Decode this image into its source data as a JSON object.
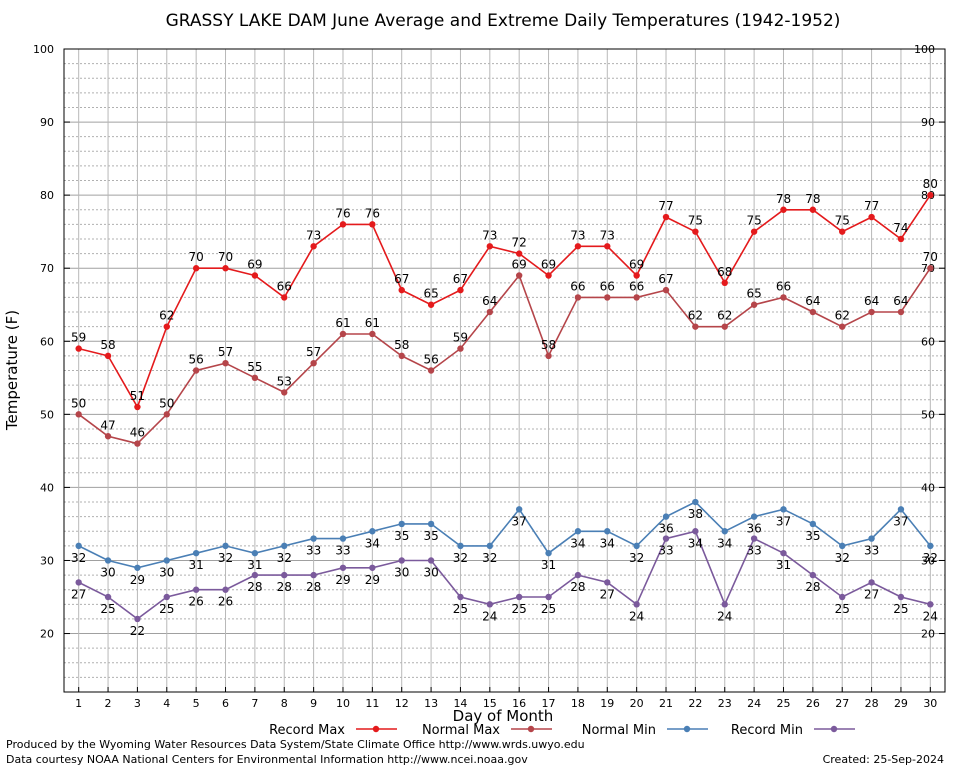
{
  "chart_data": {
    "type": "line",
    "title": "GRASSY LAKE DAM June Average and Extreme Daily Temperatures (1942-1952)",
    "xlabel": "Day of Month",
    "ylabel": "Temperature (F)",
    "x": [
      1,
      2,
      3,
      4,
      5,
      6,
      7,
      8,
      9,
      10,
      11,
      12,
      13,
      14,
      15,
      16,
      17,
      18,
      19,
      20,
      21,
      22,
      23,
      24,
      25,
      26,
      27,
      28,
      29,
      30
    ],
    "xlim": [
      0.5,
      30.5
    ],
    "ylim": [
      12,
      100
    ],
    "yticks": [
      20,
      30,
      40,
      50,
      60,
      70,
      80,
      90,
      100
    ],
    "grid": true,
    "legend_position": "bottom",
    "series": [
      {
        "name": "Record Max",
        "color": "#e41a1c",
        "values": [
          59,
          58,
          51,
          62,
          70,
          70,
          69,
          66,
          73,
          76,
          76,
          67,
          65,
          67,
          73,
          72,
          69,
          73,
          73,
          69,
          77,
          75,
          68,
          75,
          78,
          78,
          75,
          77,
          74,
          80
        ]
      },
      {
        "name": "Normal Max",
        "color": "#b5454a",
        "values": [
          50,
          47,
          46,
          50,
          56,
          57,
          55,
          53,
          57,
          61,
          61,
          58,
          56,
          59,
          64,
          69,
          58,
          66,
          66,
          66,
          67,
          62,
          62,
          65,
          66,
          64,
          62,
          64,
          64,
          70
        ]
      },
      {
        "name": "Normal Min",
        "color": "#4a7fb5",
        "values": [
          32,
          30,
          29,
          30,
          31,
          32,
          31,
          32,
          33,
          33,
          34,
          35,
          35,
          32,
          32,
          37,
          31,
          34,
          34,
          32,
          36,
          38,
          34,
          36,
          37,
          35,
          32,
          33,
          37,
          32
        ]
      },
      {
        "name": "Record Min",
        "color": "#7b5a9c",
        "values": [
          27,
          25,
          22,
          25,
          26,
          26,
          28,
          28,
          28,
          29,
          29,
          30,
          30,
          25,
          24,
          25,
          25,
          28,
          27,
          24,
          33,
          34,
          24,
          33,
          31,
          28,
          25,
          27,
          25,
          24
        ]
      }
    ]
  },
  "footer": {
    "line1": "Produced by the Wyoming Water Resources Data System/State Climate Office http://www.wrds.uwyo.edu",
    "line2": "Data courtesy NOAA National Centers for Environmental Information http://www.ncei.noaa.gov",
    "created": "Created:  25-Sep-2024"
  }
}
